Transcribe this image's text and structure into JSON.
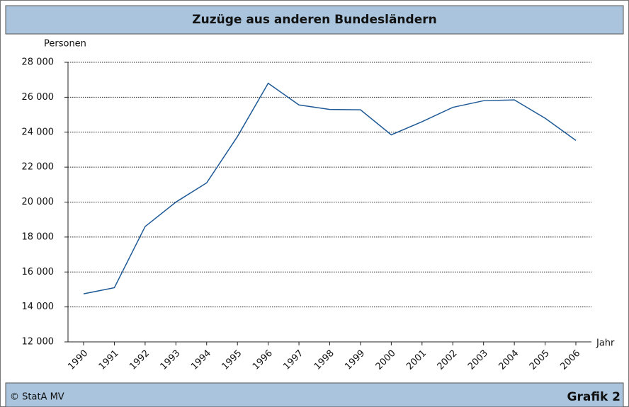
{
  "chart_data": {
    "type": "line",
    "title": "Zuzüge aus anderen Bundesländern",
    "y_label": "Personen",
    "x_label": "Jahr",
    "source": "© StatA MV",
    "figure_label": "Grafik 2",
    "categories": [
      "1990",
      "1991",
      "1992",
      "1993",
      "1994",
      "1995",
      "1996",
      "1997",
      "1998",
      "1999",
      "2000",
      "2001",
      "2002",
      "2003",
      "2004",
      "2005",
      "2006"
    ],
    "series": [
      {
        "color": "#1f5a96",
        "values": [
          14750,
          15100,
          18600,
          20000,
          21100,
          23750,
          26800,
          25560,
          25300,
          25280,
          23850,
          24600,
          25420,
          25800,
          25850,
          24800,
          23530
        ]
      }
    ],
    "ylim": [
      12000,
      28000
    ],
    "yticks": [
      {
        "value": 12000,
        "label": "12 000"
      },
      {
        "value": 14000,
        "label": "14 000"
      },
      {
        "value": 16000,
        "label": "16 000"
      },
      {
        "value": 18000,
        "label": "18 000"
      },
      {
        "value": 20000,
        "label": "20 000"
      },
      {
        "value": 22000,
        "label": "22 000"
      },
      {
        "value": 24000,
        "label": "24 000"
      },
      {
        "value": 26000,
        "label": "26 000"
      },
      {
        "value": 28000,
        "label": "28 000"
      }
    ],
    "grid": true
  }
}
